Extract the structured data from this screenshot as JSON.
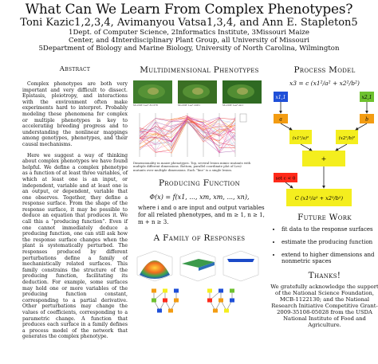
{
  "header": {
    "title": "What Can We Learn From Complex Phenotypes?",
    "authors": "Toni Kazic1,2,3,4, Avimanyou Vatsa1,3,4, and Ann E. Stapleton5",
    "affil_1": "1Dept. of Computer Science, 2Informatics Institute, 3Missouri Maize",
    "affil_2": "Center, and 4Interdisciplinary Plant Group, all University of Missouri",
    "affil_3": "5Department of Biology and Marine Biology, University of North Carolina, Wilmington"
  },
  "abstract": {
    "heading": "Abstract",
    "p1": "Complex phenotypes are both very important and very difficult to dissect. Epistasis, pleiotropy, and interactions with the environment often make experiments hard to interpret. Probably modeling these phenomena for complex or multiple phenotypes is key to accelerating breeding progress and to understanding the nonlinear mappings among genotypes, phenotypes, and their causal mechanisms.",
    "p2": "Here we suggest a way of thinking about complex phenotypes we have found helpful. We define a complex phenotype as a function of at least three variables, of which at least one is an input, or independent, variable and at least one is an output, or dependent, variable that one observes. Together, they define a response surface. From the shape of the response surface, it may be possible to deduce an equation that produces it. We call this a “producing function”. Even if one cannot immediately deduce a producing function, one can still ask how the response surface changes when the plant is systematically perturbed. The responses produced by different perturbations define a family of mechanistically related surfaces. This family constrains the structure of the producing function, facilitating its deduction. For example, some surfaces may hold one or more variables of the producing function constant, corresponding to a partial derivative. Other perturbations may change the values of coefficients, corresponding to a parametric change. A function that produces each surface in a family defines a process model of the network that generates the complex phenotype."
  },
  "multi": {
    "heading": "Multidimensional Phenotypes",
    "photo_captions": [
      "Mo20W Les*-N1378",
      "Mo20W Les*-2061",
      "Mo20W Les*-mi1"
    ],
    "figure_caption": "Dimensionality in maize phenotypes. Top, several lesion mimic mutants with multiple different dimensions. Bottom, parallel coordinate plot of Les2 mutants over multiple dimensions. Each “line” is a single lesion."
  },
  "producing": {
    "heading": "Producing Function",
    "equation": "Φ(x) = f(x1, ..., xm, xm, ..., xn),",
    "text": "where i and o are input and output variables for all related phenotypes, and m ≥ 1, n ≥ 1, m + n ≥ 3."
  },
  "family": {
    "heading": "A Family of Responses"
  },
  "process": {
    "heading": "Process Model",
    "equation": "x3 = c (x1²/a² + x2²/b²)",
    "nodes": {
      "x11": "x1,1",
      "x21": "x2,1",
      "a": "a",
      "b": "b",
      "left_frac": "(x1²/a)²",
      "right_frac": "(x2²/b)²",
      "plus": "+",
      "set": "set c < 0",
      "c": "c",
      "final": "C (x1²/a² + x2²/b²)"
    }
  },
  "future": {
    "heading": "Future Work",
    "items": [
      "fit data to the response surfaces",
      "estimate the producing function",
      "extend to higher dimensions and nonmetric spaces"
    ]
  },
  "thanks": {
    "heading": "Thanks!",
    "text": "We gratefully acknowledge the support of the National Science Foundation, MCB-1122130; and the National Research Initiative Competitive Grant-2009-35108-05028 from the USDA National Institute of Food and Agriculture."
  },
  "colors": {
    "orange": "#f39c12",
    "yellow": "#f4ee1e",
    "green": "#6ec12f",
    "red": "#ff2a1a",
    "blue": "#1f4fd8"
  }
}
